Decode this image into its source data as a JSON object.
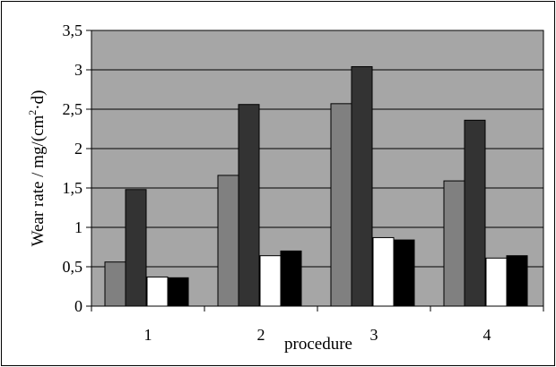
{
  "chart_data": {
    "type": "bar",
    "title": "",
    "xlabel": "procedure",
    "ylabel_parts": {
      "before": "Wear rate / mg/(cm",
      "sup": "2",
      "after": "·d)"
    },
    "categories": [
      "1",
      "2",
      "3",
      "4"
    ],
    "ylim": [
      0,
      3.5
    ],
    "y_ticks": [
      "0",
      "0,5",
      "1",
      "1,5",
      "2",
      "2,5",
      "3",
      "3,5"
    ],
    "grid": true,
    "legend": "none",
    "plot_background": "#a6a6a6",
    "series": [
      {
        "color": "#808080",
        "values": [
          0.56,
          1.66,
          2.57,
          1.59
        ]
      },
      {
        "color": "#333333",
        "values": [
          1.48,
          2.56,
          3.04,
          2.36
        ]
      },
      {
        "color": "#ffffff",
        "values": [
          0.37,
          0.64,
          0.87,
          0.61
        ]
      },
      {
        "color": "#000000",
        "values": [
          0.36,
          0.7,
          0.84,
          0.64
        ]
      }
    ]
  }
}
